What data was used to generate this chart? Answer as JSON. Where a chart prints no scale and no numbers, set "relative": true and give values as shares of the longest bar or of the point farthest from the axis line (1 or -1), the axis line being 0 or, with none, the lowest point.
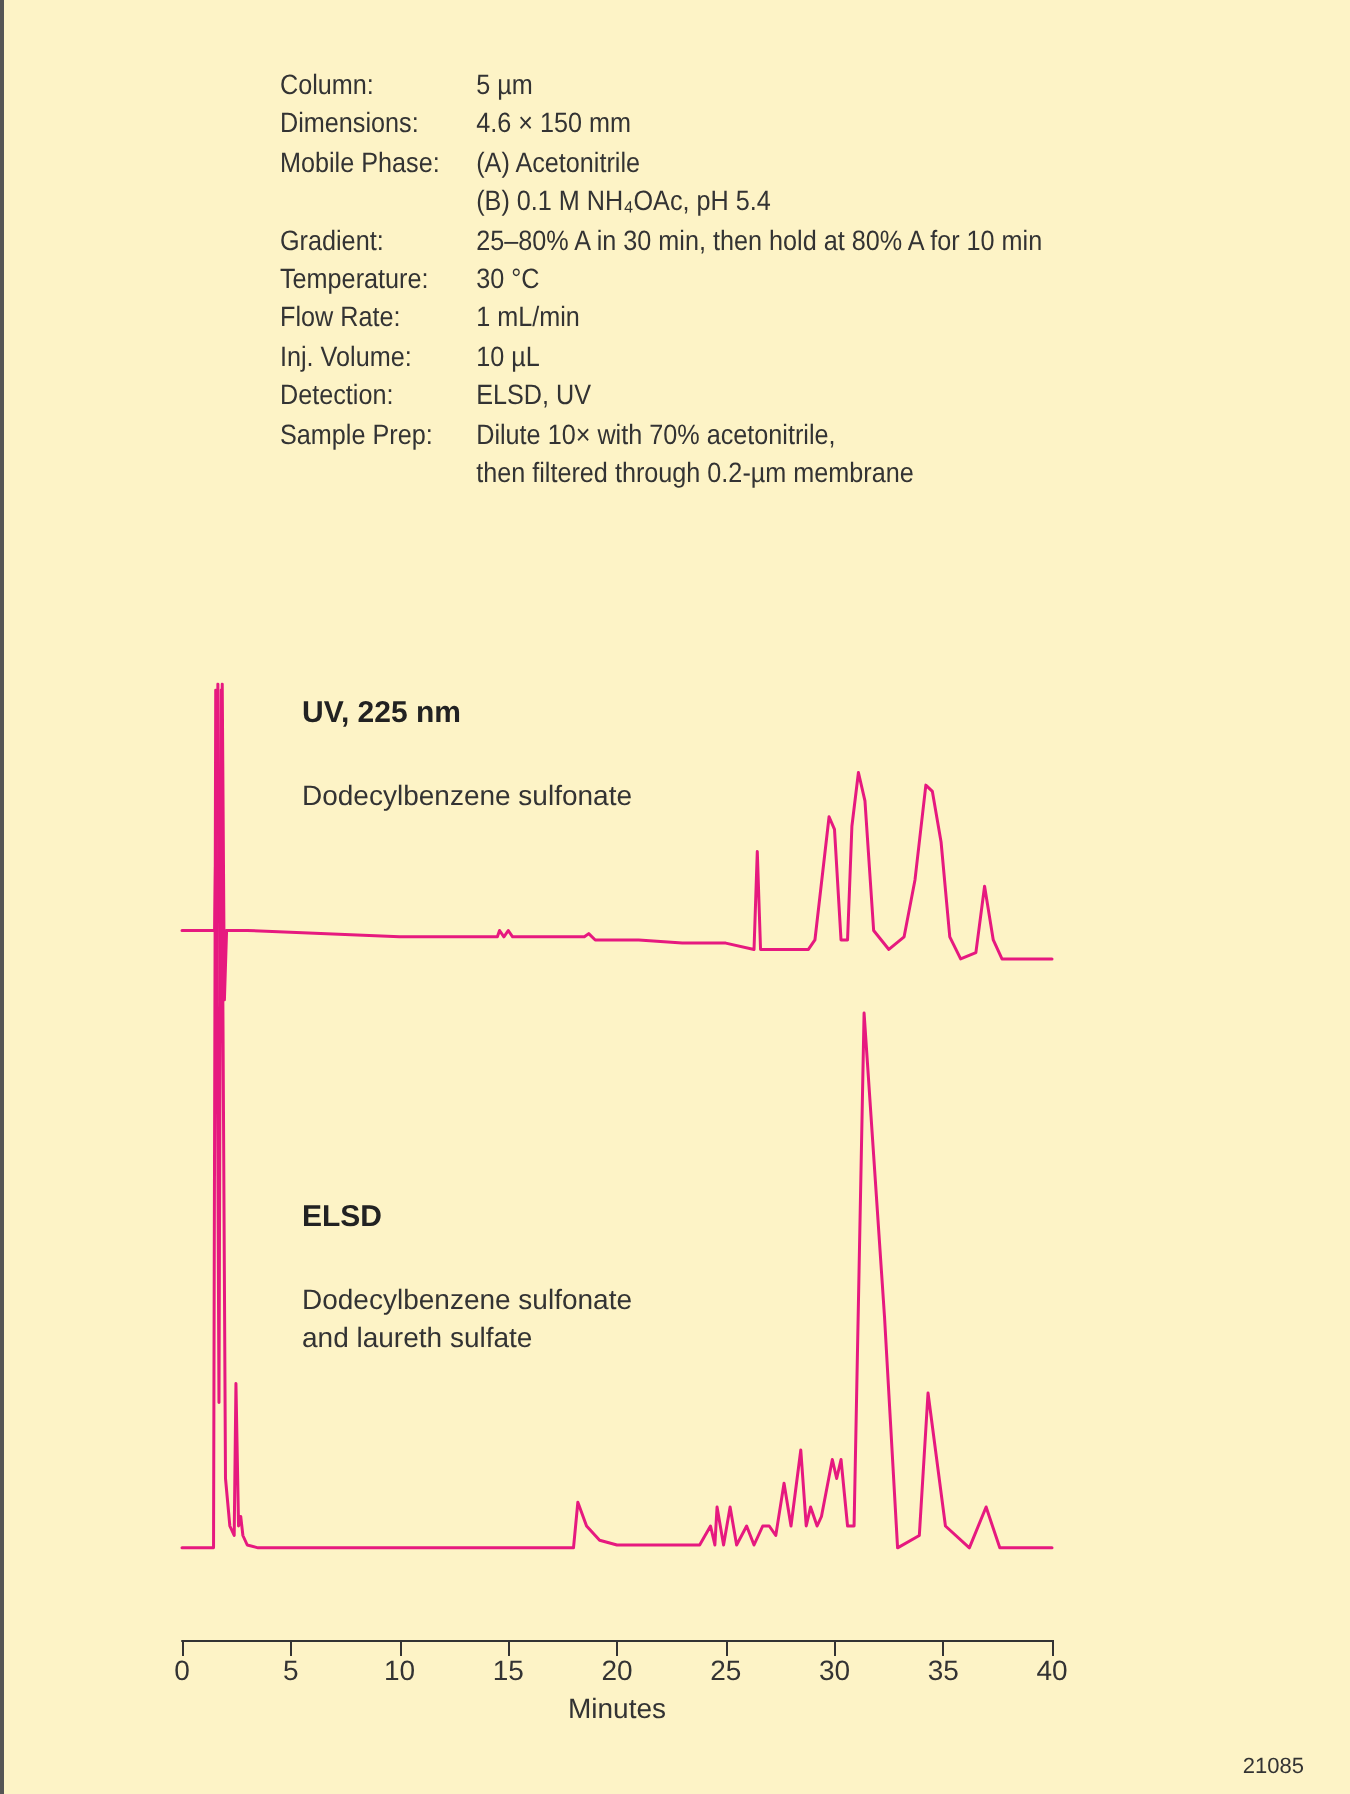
{
  "chart_data": [
    {
      "type": "other",
      "annotations": [
        "Column: 5 µm",
        "Dimensions: 4.6 × 150 mm",
        "Mobile Phase: (A) Acetonitrile",
        "(B) 0.1 M NH₄OAc, pH 5.4",
        "Gradient: 25–80% A in 30 min, then hold at 80% A for 10 min",
        "Temperature: 30 °C",
        "Flow Rate: 1 mL/min",
        "Inj. Volume: 10 µL",
        "Detection: ELSD, UV",
        "Sample Prep: Dilute 10× with 70% acetonitrile,",
        "then filtered through 0.2-µm membrane"
      ]
    },
    {
      "type": "line",
      "title": "UV, 225 nm",
      "subtitle": "Dodecylbenzene sulfonate",
      "relative": true,
      "tick_labels": false,
      "xlim": [
        0,
        40
      ],
      "grid": false,
      "marker": "none",
      "line_style": "solid",
      "series": [
        {
          "color": "#e6197f",
          "x": [
            0,
            1.5,
            1.65,
            1.75,
            1.85,
            1.95,
            2.05,
            2.5,
            3,
            10,
            14.5,
            14.6,
            14.8,
            15,
            15.2,
            18.5,
            18.7,
            19,
            21,
            23,
            25,
            26.3,
            26.45,
            26.6,
            27.5,
            28.8,
            29.1,
            29.75,
            30.0,
            30.3,
            30.6,
            30.8,
            31.1,
            31.4,
            31.8,
            32.5,
            33.2,
            33.7,
            34.2,
            34.5,
            34.9,
            35.3,
            35.8,
            36.5,
            36.9,
            37.3,
            37.7,
            40
          ],
          "values": [
            0.22,
            0.22,
            1,
            0,
            1,
            0,
            0.22,
            0.22,
            0.22,
            0.2,
            0.2,
            0.22,
            0.2,
            0.22,
            0.2,
            0.2,
            0.21,
            0.19,
            0.19,
            0.18,
            0.18,
            0.16,
            0.47,
            0.16,
            0.16,
            0.16,
            0.19,
            0.58,
            0.54,
            0.19,
            0.19,
            0.55,
            0.72,
            0.63,
            0.22,
            0.16,
            0.2,
            0.38,
            0.68,
            0.66,
            0.5,
            0.2,
            0.13,
            0.15,
            0.36,
            0.19,
            0.13,
            0.13
          ]
        }
      ]
    },
    {
      "type": "line",
      "title": "ELSD",
      "subtitle": "Dodecylbenzene sulfonate and laureth sulfate",
      "relative": true,
      "tick_labels": "x",
      "xlabel": "Minutes",
      "xlim": [
        0,
        40
      ],
      "xticks": [
        0,
        5,
        10,
        15,
        20,
        25,
        30,
        35,
        40
      ],
      "grid": false,
      "marker": "none",
      "line_style": "solid",
      "annotations": [
        "21085"
      ],
      "series": [
        {
          "color": "#e6197f",
          "x": [
            0,
            1.45,
            1.55,
            1.7,
            1.8,
            2.0,
            2.2,
            2.4,
            2.48,
            2.6,
            2.7,
            2.8,
            3.0,
            3.5,
            18.0,
            18.2,
            18.6,
            19.2,
            20,
            23,
            23.8,
            24.3,
            24.5,
            24.6,
            24.9,
            25.2,
            25.5,
            25.96,
            26.3,
            26.7,
            27.0,
            27.3,
            27.68,
            28.0,
            28.45,
            28.7,
            28.9,
            29.2,
            29.4,
            29.9,
            30.1,
            30.3,
            30.6,
            30.9,
            31.36,
            32.3,
            32.9,
            33.9,
            34.3,
            35.1,
            36.2,
            36.97,
            37.6,
            40
          ],
          "values": [
            0.097,
            0.097,
            1,
            0.25,
            1,
            0.17,
            0.12,
            0.11,
            0.27,
            0.12,
            0.13,
            0.11,
            0.1,
            0.097,
            0.097,
            0.145,
            0.12,
            0.105,
            0.1,
            0.1,
            0.1,
            0.12,
            0.1,
            0.14,
            0.1,
            0.14,
            0.1,
            0.12,
            0.1,
            0.12,
            0.12,
            0.11,
            0.165,
            0.12,
            0.2,
            0.12,
            0.14,
            0.12,
            0.13,
            0.19,
            0.17,
            0.19,
            0.12,
            0.12,
            0.66,
            0.34,
            0.097,
            0.11,
            0.26,
            0.12,
            0.097,
            0.14,
            0.097,
            0.097
          ]
        }
      ]
    }
  ]
}
